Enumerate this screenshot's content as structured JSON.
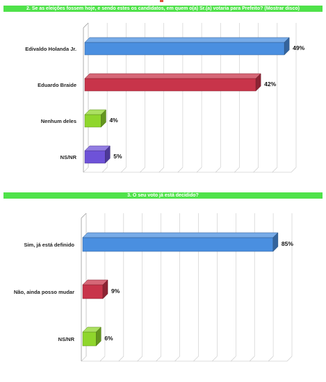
{
  "chart_data": [
    {
      "type": "bar",
      "orientation": "horizontal",
      "style": "3d",
      "title": "2. Se as eleições fossem hoje, e sendo estes os candidatos, em quem o(a) Sr.(a) votaria para Prefeito? (Mostrar disco)",
      "categories": [
        "Edivaldo Holanda Jr.",
        "Eduardo Braide",
        "Nenhum deles",
        "NS/NR"
      ],
      "values": [
        49,
        42,
        4,
        5
      ],
      "value_labels": [
        "49%",
        "42%",
        "4%",
        "5%"
      ],
      "colors": [
        "#4a8fe0",
        "#c8344a",
        "#8fd62c",
        "#6e52d8"
      ],
      "xlim": [
        0,
        50
      ],
      "grid": true
    },
    {
      "type": "bar",
      "orientation": "horizontal",
      "style": "3d",
      "title": "3. O seu voto já está decidido?",
      "categories": [
        "Sim, já está definido",
        "Não, ainda posso mudar",
        "NS/NR"
      ],
      "values": [
        85,
        9,
        6
      ],
      "value_labels": [
        "85%",
        "9%",
        "6%"
      ],
      "colors": [
        "#4a8fe0",
        "#c8344a",
        "#8fd62c"
      ],
      "xlim": [
        0,
        90
      ],
      "grid": true
    }
  ]
}
